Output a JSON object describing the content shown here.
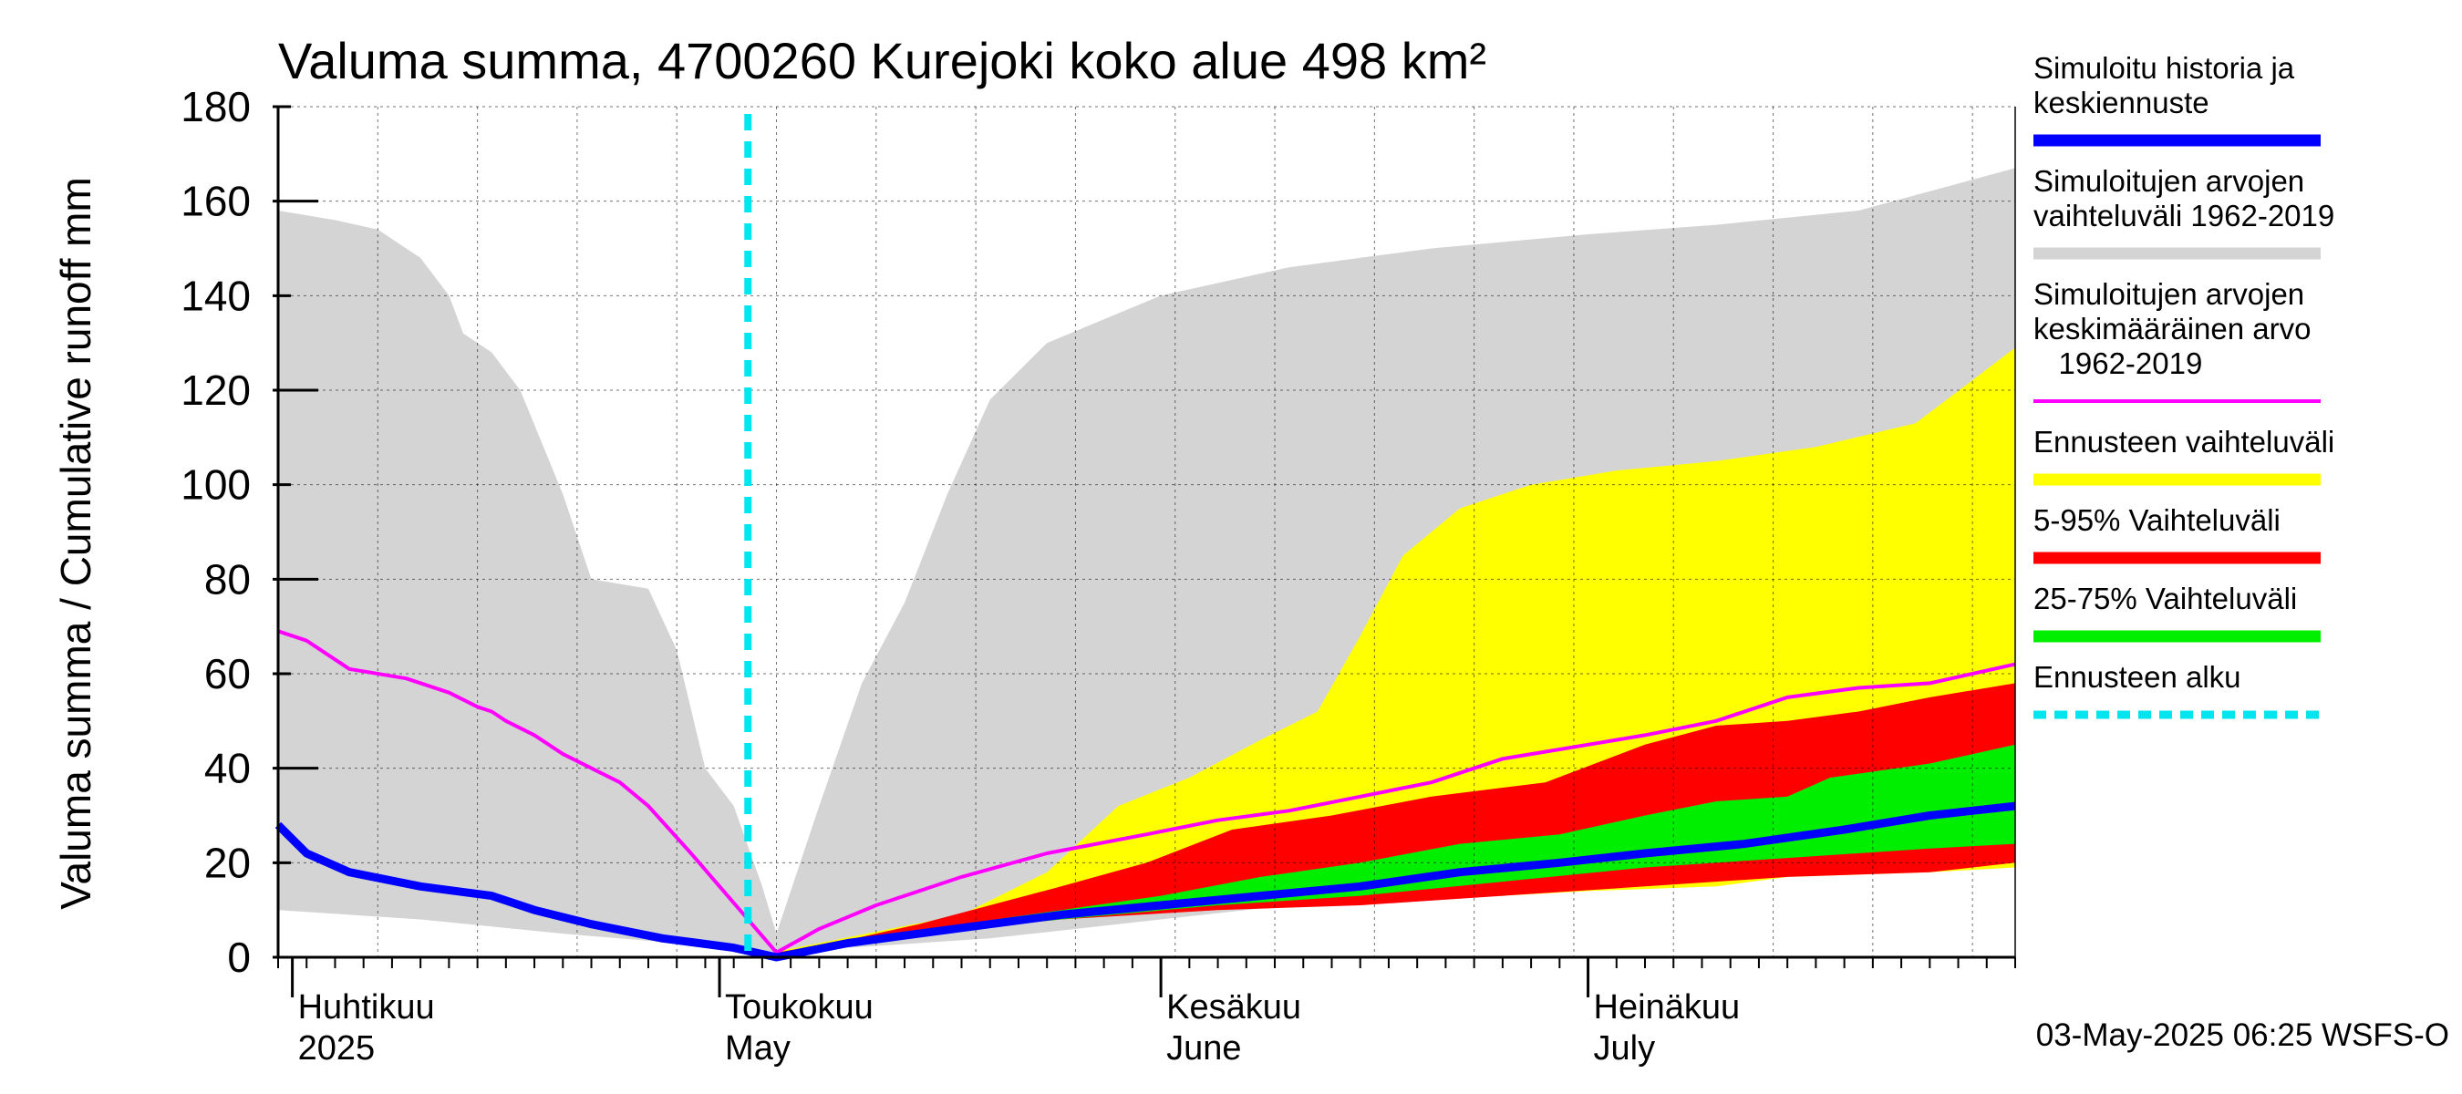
{
  "chart_data": {
    "type": "area",
    "title": "Valuma summa, 4700260 Kurejoki koko alue 498 km²",
    "ylabel": "Valuma summa / Cumulative runoff    mm",
    "ylim": [
      0,
      180
    ],
    "yticks": [
      "0",
      "20",
      "40",
      "60",
      "80",
      "100",
      "120",
      "140",
      "160",
      "180"
    ],
    "x_months": [
      {
        "fi": "Huhtikuu",
        "en": "2025",
        "date": "2025-04-01"
      },
      {
        "fi": "Toukokuu",
        "en": "May",
        "date": "2025-05-01"
      },
      {
        "fi": "Kesäkuu",
        "en": "June",
        "date": "2025-06-01"
      },
      {
        "fi": "Heinäkuu",
        "en": "July",
        "date": "2025-07-01"
      }
    ],
    "x_range": [
      "2025-03-31",
      "2025-07-31"
    ],
    "forecast_start": "2025-05-03",
    "timestamp": "03-May-2025 06:25 WSFS-O",
    "grid": true,
    "legend_placement": "right",
    "series": [
      {
        "name": "Simuloitujen arvojen vaihteluväli 1962-2019",
        "kind": "band",
        "color": "#d4d4d4",
        "upper": [
          [
            "2025-03-31",
            158
          ],
          [
            "2025-04-04",
            156
          ],
          [
            "2025-04-07",
            154
          ],
          [
            "2025-04-10",
            148
          ],
          [
            "2025-04-12",
            140
          ],
          [
            "2025-04-13",
            132
          ],
          [
            "2025-04-15",
            128
          ],
          [
            "2025-04-17",
            120
          ],
          [
            "2025-04-20",
            98
          ],
          [
            "2025-04-22",
            80
          ],
          [
            "2025-04-24",
            79
          ],
          [
            "2025-04-26",
            78
          ],
          [
            "2025-04-28",
            65
          ],
          [
            "2025-04-30",
            40
          ],
          [
            "2025-05-02",
            32
          ],
          [
            "2025-05-04",
            15
          ],
          [
            "2025-05-05",
            5
          ],
          [
            "2025-05-08",
            32
          ],
          [
            "2025-05-11",
            58
          ],
          [
            "2025-05-14",
            75
          ],
          [
            "2025-05-17",
            98
          ],
          [
            "2025-05-20",
            118
          ],
          [
            "2025-05-24",
            130
          ],
          [
            "2025-06-01",
            140
          ],
          [
            "2025-06-10",
            146
          ],
          [
            "2025-06-20",
            150
          ],
          [
            "2025-07-01",
            153
          ],
          [
            "2025-07-10",
            155
          ],
          [
            "2025-07-20",
            158
          ],
          [
            "2025-07-31",
            167
          ]
        ],
        "lower": [
          [
            "2025-03-31",
            10
          ],
          [
            "2025-04-10",
            8
          ],
          [
            "2025-04-20",
            5
          ],
          [
            "2025-04-28",
            3
          ],
          [
            "2025-05-03",
            1
          ],
          [
            "2025-05-05",
            0
          ],
          [
            "2025-05-10",
            2
          ],
          [
            "2025-05-20",
            4
          ],
          [
            "2025-06-01",
            8
          ],
          [
            "2025-06-10",
            11
          ],
          [
            "2025-06-20",
            13
          ],
          [
            "2025-07-01",
            15
          ],
          [
            "2025-07-10",
            16
          ],
          [
            "2025-07-20",
            18
          ],
          [
            "2025-07-31",
            20
          ]
        ]
      },
      {
        "name": "Ennusteen vaihteluväli",
        "kind": "band",
        "color": "#ffff00",
        "upper": [
          [
            "2025-05-03",
            0
          ],
          [
            "2025-05-08",
            3
          ],
          [
            "2025-05-13",
            6
          ],
          [
            "2025-05-18",
            9
          ],
          [
            "2025-05-24",
            18
          ],
          [
            "2025-05-29",
            32
          ],
          [
            "2025-06-03",
            38
          ],
          [
            "2025-06-08",
            46
          ],
          [
            "2025-06-12",
            52
          ],
          [
            "2025-06-15",
            68
          ],
          [
            "2025-06-18",
            85
          ],
          [
            "2025-06-22",
            95
          ],
          [
            "2025-06-27",
            100
          ],
          [
            "2025-07-03",
            103
          ],
          [
            "2025-07-10",
            105
          ],
          [
            "2025-07-17",
            108
          ],
          [
            "2025-07-24",
            113
          ],
          [
            "2025-07-31",
            129
          ]
        ],
        "lower": [
          [
            "2025-05-03",
            0
          ],
          [
            "2025-05-15",
            5
          ],
          [
            "2025-05-25",
            9
          ],
          [
            "2025-06-05",
            10
          ],
          [
            "2025-06-15",
            12
          ],
          [
            "2025-06-25",
            13
          ],
          [
            "2025-07-01",
            14
          ],
          [
            "2025-07-10",
            15
          ],
          [
            "2025-07-15",
            17
          ],
          [
            "2025-07-25",
            18
          ],
          [
            "2025-07-31",
            19
          ]
        ]
      },
      {
        "name": "5-95% Vaihteluväli",
        "kind": "band",
        "color": "#ff0000",
        "upper": [
          [
            "2025-05-03",
            0
          ],
          [
            "2025-05-09",
            3
          ],
          [
            "2025-05-15",
            7
          ],
          [
            "2025-05-20",
            11
          ],
          [
            "2025-05-25",
            15
          ],
          [
            "2025-05-31",
            20
          ],
          [
            "2025-06-06",
            27
          ],
          [
            "2025-06-13",
            30
          ],
          [
            "2025-06-20",
            34
          ],
          [
            "2025-06-28",
            37
          ],
          [
            "2025-07-05",
            45
          ],
          [
            "2025-07-10",
            49
          ],
          [
            "2025-07-15",
            50
          ],
          [
            "2025-07-20",
            52
          ],
          [
            "2025-07-25",
            55
          ],
          [
            "2025-07-31",
            58
          ]
        ],
        "lower": [
          [
            "2025-05-03",
            0
          ],
          [
            "2025-05-15",
            5
          ],
          [
            "2025-05-25",
            8
          ],
          [
            "2025-06-05",
            10
          ],
          [
            "2025-06-15",
            11
          ],
          [
            "2025-06-25",
            13
          ],
          [
            "2025-07-05",
            15
          ],
          [
            "2025-07-15",
            17
          ],
          [
            "2025-07-25",
            18
          ],
          [
            "2025-07-31",
            20
          ]
        ]
      },
      {
        "name": "25-75% Vaihteluväli",
        "kind": "band",
        "color": "#00ee00",
        "upper": [
          [
            "2025-05-03",
            0
          ],
          [
            "2025-05-10",
            3
          ],
          [
            "2025-05-18",
            7
          ],
          [
            "2025-05-25",
            10
          ],
          [
            "2025-06-01",
            13
          ],
          [
            "2025-06-08",
            17
          ],
          [
            "2025-06-15",
            20
          ],
          [
            "2025-06-22",
            24
          ],
          [
            "2025-06-29",
            26
          ],
          [
            "2025-07-05",
            30
          ],
          [
            "2025-07-10",
            33
          ],
          [
            "2025-07-15",
            34
          ],
          [
            "2025-07-18",
            38
          ],
          [
            "2025-07-25",
            41
          ],
          [
            "2025-07-31",
            45
          ]
        ],
        "lower": [
          [
            "2025-05-03",
            0
          ],
          [
            "2025-05-15",
            5
          ],
          [
            "2025-05-25",
            8
          ],
          [
            "2025-06-05",
            11
          ],
          [
            "2025-06-15",
            13
          ],
          [
            "2025-06-25",
            16
          ],
          [
            "2025-07-05",
            19
          ],
          [
            "2025-07-15",
            21
          ],
          [
            "2025-07-25",
            23
          ],
          [
            "2025-07-31",
            24
          ]
        ]
      },
      {
        "name": "Simuloitujen arvojen keskimääräinen arvo 1962-2019",
        "kind": "line",
        "color": "#ff00ff",
        "points": [
          [
            "2025-03-31",
            69
          ],
          [
            "2025-04-02",
            67
          ],
          [
            "2025-04-05",
            61
          ],
          [
            "2025-04-09",
            59
          ],
          [
            "2025-04-12",
            56
          ],
          [
            "2025-04-14",
            53
          ],
          [
            "2025-04-15",
            52
          ],
          [
            "2025-04-16",
            50
          ],
          [
            "2025-04-18",
            47
          ],
          [
            "2025-04-20",
            43
          ],
          [
            "2025-04-24",
            37
          ],
          [
            "2025-04-26",
            32
          ],
          [
            "2025-04-29",
            22
          ],
          [
            "2025-05-01",
            15
          ],
          [
            "2025-05-03",
            8
          ],
          [
            "2025-05-05",
            1
          ],
          [
            "2025-05-08",
            6
          ],
          [
            "2025-05-12",
            11
          ],
          [
            "2025-05-18",
            17
          ],
          [
            "2025-05-24",
            22
          ],
          [
            "2025-05-31",
            26
          ],
          [
            "2025-06-05",
            29
          ],
          [
            "2025-06-10",
            31
          ],
          [
            "2025-06-15",
            34
          ],
          [
            "2025-06-20",
            37
          ],
          [
            "2025-06-25",
            42
          ],
          [
            "2025-07-01",
            45
          ],
          [
            "2025-07-05",
            47
          ],
          [
            "2025-07-10",
            50
          ],
          [
            "2025-07-15",
            55
          ],
          [
            "2025-07-20",
            57
          ],
          [
            "2025-07-25",
            58
          ],
          [
            "2025-07-31",
            62
          ]
        ]
      },
      {
        "name": "Simuloitu historia ja keskiennuste",
        "kind": "line",
        "color": "#0000ff",
        "points": [
          [
            "2025-03-31",
            28
          ],
          [
            "2025-04-02",
            22
          ],
          [
            "2025-04-05",
            18
          ],
          [
            "2025-04-10",
            15
          ],
          [
            "2025-04-15",
            13
          ],
          [
            "2025-04-18",
            10
          ],
          [
            "2025-04-22",
            7
          ],
          [
            "2025-04-27",
            4
          ],
          [
            "2025-05-02",
            2
          ],
          [
            "2025-05-05",
            0
          ],
          [
            "2025-05-10",
            3
          ],
          [
            "2025-05-15",
            5
          ],
          [
            "2025-05-20",
            7
          ],
          [
            "2025-05-25",
            9
          ],
          [
            "2025-06-01",
            11
          ],
          [
            "2025-06-08",
            13
          ],
          [
            "2025-06-15",
            15
          ],
          [
            "2025-06-22",
            18
          ],
          [
            "2025-06-29",
            20
          ],
          [
            "2025-07-05",
            22
          ],
          [
            "2025-07-12",
            24
          ],
          [
            "2025-07-19",
            27
          ],
          [
            "2025-07-25",
            30
          ],
          [
            "2025-07-31",
            32
          ]
        ]
      },
      {
        "name": "Ennusteen alku",
        "kind": "vline",
        "color": "#00e5ee",
        "date": "2025-05-03"
      }
    ],
    "legend": [
      {
        "lines": [
          "Simuloitu historia ja",
          "keskiennuste"
        ],
        "color": "#0000ff",
        "style": "solid"
      },
      {
        "lines": [
          "Simuloitujen arvojen",
          "vaihteluväli 1962-2019"
        ],
        "color": "#d4d4d4",
        "style": "solid"
      },
      {
        "lines": [
          "Simuloitujen arvojen",
          "keskimääräinen arvo",
          "   1962-2019"
        ],
        "color": "#ff00ff",
        "style": "thin"
      },
      {
        "lines": [
          "Ennusteen vaihteluväli"
        ],
        "color": "#ffff00",
        "style": "solid"
      },
      {
        "lines": [
          "5-95% Vaihteluväli"
        ],
        "color": "#ff0000",
        "style": "solid"
      },
      {
        "lines": [
          "25-75% Vaihteluväli"
        ],
        "color": "#00ee00",
        "style": "solid"
      },
      {
        "lines": [
          "Ennusteen alku"
        ],
        "color": "#00e5ee",
        "style": "dashed"
      }
    ]
  }
}
